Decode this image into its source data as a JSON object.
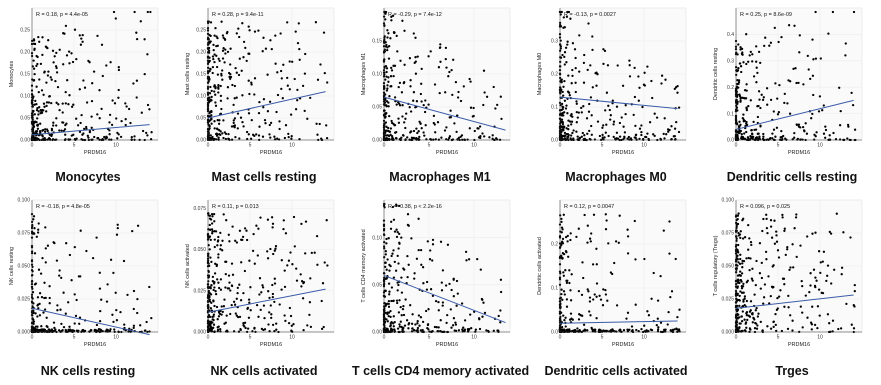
{
  "colors": {
    "point": "#000000",
    "trend": "#3a5ba8",
    "grid": "#ececec",
    "axis": "#333333"
  },
  "chart_data": [
    {
      "type": "scatter",
      "title": "Monocytes",
      "xlabel": "",
      "ylabel": "Monocytes",
      "annotation": "R = 0.18, p = 4.4e-05",
      "xlim": [
        0,
        15
      ],
      "ylim": [
        0,
        0.3
      ],
      "xticks": [
        "0",
        "5",
        "10"
      ],
      "xtick_values": [
        0,
        5,
        10
      ],
      "yticks": [
        "0.00",
        "0.05",
        "0.10",
        "0.15",
        "0.20",
        "0.25"
      ],
      "ytick_values": [
        0,
        0.05,
        0.1,
        0.15,
        0.2,
        0.25
      ],
      "trend": {
        "x": [
          0,
          14
        ],
        "y": [
          0.012,
          0.035
        ]
      },
      "seed": 11,
      "pattern": "pos"
    },
    {
      "type": "scatter",
      "title": "Mast cells resting",
      "xlabel": "",
      "ylabel": "Mast cells resting",
      "annotation": "R = 0.28, p = 9.4e-11",
      "xlim": [
        0,
        15
      ],
      "ylim": [
        0,
        0.3
      ],
      "xticks": [
        "0",
        "5",
        "10"
      ],
      "xtick_values": [
        0,
        5,
        10
      ],
      "yticks": [
        "0.00",
        "0.05",
        "0.10",
        "0.15",
        "0.20",
        "0.25"
      ],
      "ytick_values": [
        0,
        0.05,
        0.1,
        0.15,
        0.2,
        0.25
      ],
      "trend": {
        "x": [
          0,
          14
        ],
        "y": [
          0.05,
          0.11
        ]
      },
      "seed": 23,
      "pattern": "spread"
    },
    {
      "type": "scatter",
      "title": "Macrophages M1",
      "xlabel": "",
      "ylabel": "Macrophages M1",
      "annotation": "R = -0.29, p = 7.4e-12",
      "xlim": [
        0,
        14
      ],
      "ylim": [
        0,
        0.2
      ],
      "xticks": [
        "0",
        "5",
        "10"
      ],
      "xtick_values": [
        0,
        5,
        10
      ],
      "yticks": [
        "0.00",
        "0.05",
        "0.10",
        "0.15"
      ],
      "ytick_values": [
        0,
        0.05,
        0.1,
        0.15
      ],
      "trend": {
        "x": [
          0,
          13.5
        ],
        "y": [
          0.065,
          0.015
        ]
      },
      "seed": 37,
      "pattern": "neg"
    },
    {
      "type": "scatter",
      "title": "Macrophages M0",
      "xlabel": "",
      "ylabel": "Macrophages M0",
      "annotation": "R = -0.13, p = 0.0027",
      "xlim": [
        0,
        15
      ],
      "ylim": [
        0,
        0.4
      ],
      "xticks": [
        "0",
        "5",
        "10"
      ],
      "xtick_values": [
        0,
        5,
        10
      ],
      "yticks": [
        "0.0",
        "0.1",
        "0.2",
        "0.3"
      ],
      "ytick_values": [
        0,
        0.1,
        0.2,
        0.3
      ],
      "trend": {
        "x": [
          0,
          14
        ],
        "y": [
          0.13,
          0.095
        ]
      },
      "seed": 41,
      "pattern": "neg"
    },
    {
      "type": "scatter",
      "title": "Dendritic cells resting",
      "xlabel": "",
      "ylabel": "Dendritic cells resting",
      "annotation": "R = 0.25, p = 8.6e-09",
      "xlim": [
        0,
        15
      ],
      "ylim": [
        0,
        0.5
      ],
      "xticks": [
        "0",
        "5",
        "10"
      ],
      "xtick_values": [
        0,
        5,
        10
      ],
      "yticks": [
        "0.0",
        "0.1",
        "0.2",
        "0.3",
        "0.4"
      ],
      "ytick_values": [
        0,
        0.1,
        0.2,
        0.3,
        0.4
      ],
      "trend": {
        "x": [
          0,
          14
        ],
        "y": [
          0.04,
          0.15
        ]
      },
      "seed": 53,
      "pattern": "pos"
    },
    {
      "type": "scatter",
      "title": "NK cells resting",
      "xlabel": "",
      "ylabel": "NK cells resting",
      "annotation": "R = -0.18, p = 4.8e-05",
      "xlim": [
        0,
        15
      ],
      "ylim": [
        0,
        0.1
      ],
      "xticks": [
        "0",
        "5",
        "10"
      ],
      "xtick_values": [
        0,
        5,
        10
      ],
      "yticks": [
        "0.000",
        "0.025",
        "0.050",
        "0.075",
        "0.100"
      ],
      "ytick_values": [
        0,
        0.025,
        0.05,
        0.075,
        0.1
      ],
      "trend": {
        "x": [
          0,
          14
        ],
        "y": [
          0.018,
          -0.002
        ]
      },
      "seed": 67,
      "pattern": "zeros"
    },
    {
      "type": "scatter",
      "title": "NK cells activated",
      "xlabel": "",
      "ylabel": "NK cells activated",
      "annotation": "R = 0.11, p = 0.013",
      "xlim": [
        0,
        15
      ],
      "ylim": [
        0,
        0.08
      ],
      "xticks": [
        "0",
        "5",
        "10"
      ],
      "xtick_values": [
        0,
        5,
        10
      ],
      "yticks": [
        "0.000",
        "0.025",
        "0.050",
        "0.075"
      ],
      "ytick_values": [
        0,
        0.025,
        0.05,
        0.075
      ],
      "trend": {
        "x": [
          0,
          14
        ],
        "y": [
          0.012,
          0.026
        ]
      },
      "seed": 79,
      "pattern": "spread"
    },
    {
      "type": "scatter",
      "title": "T cells CD4 memory activated",
      "xlabel": "",
      "ylabel": "T cells CD4 memory activated",
      "annotation": "R = -0.38, p < 2.2e-16",
      "xlim": [
        0,
        14
      ],
      "ylim": [
        0,
        0.14
      ],
      "xticks": [
        "0",
        "5",
        "10"
      ],
      "xtick_values": [
        0,
        5,
        10
      ],
      "yticks": [
        "0.00",
        "0.05",
        "0.10"
      ],
      "ytick_values": [
        0,
        0.05,
        0.1
      ],
      "trend": {
        "x": [
          0,
          13.5
        ],
        "y": [
          0.06,
          0.01
        ]
      },
      "seed": 83,
      "pattern": "neg"
    },
    {
      "type": "scatter",
      "title": "Dendritic cells activated",
      "xlabel": "",
      "ylabel": "Dendritic cells activated",
      "annotation": "R = 0.12, p = 0.0047",
      "xlim": [
        0,
        15
      ],
      "ylim": [
        0,
        0.3
      ],
      "xticks": [
        "0",
        "5",
        "10"
      ],
      "xtick_values": [
        0,
        5,
        10
      ],
      "yticks": [
        "0.0",
        "0.1",
        "0.2"
      ],
      "ytick_values": [
        0,
        0.1,
        0.2
      ],
      "trend": {
        "x": [
          0,
          14
        ],
        "y": [
          0.02,
          0.025
        ]
      },
      "seed": 97,
      "pattern": "zeros"
    },
    {
      "type": "scatter",
      "title": "Trges",
      "xlabel": "",
      "ylabel": "T cells regulatory (Tregs)",
      "annotation": "R = 0.096, p = 0.025",
      "xlim": [
        0,
        15
      ],
      "ylim": [
        0,
        0.1
      ],
      "xticks": [
        "0",
        "5",
        "10"
      ],
      "xtick_values": [
        0,
        5,
        10
      ],
      "yticks": [
        "0.000",
        "0.025",
        "0.050",
        "0.075",
        "0.100"
      ],
      "ytick_values": [
        0,
        0.025,
        0.05,
        0.075,
        0.1
      ],
      "trend": {
        "x": [
          0,
          14
        ],
        "y": [
          0.018,
          0.028
        ]
      },
      "seed": 101,
      "pattern": "spread"
    }
  ],
  "xaxis_label": "PRDM16"
}
